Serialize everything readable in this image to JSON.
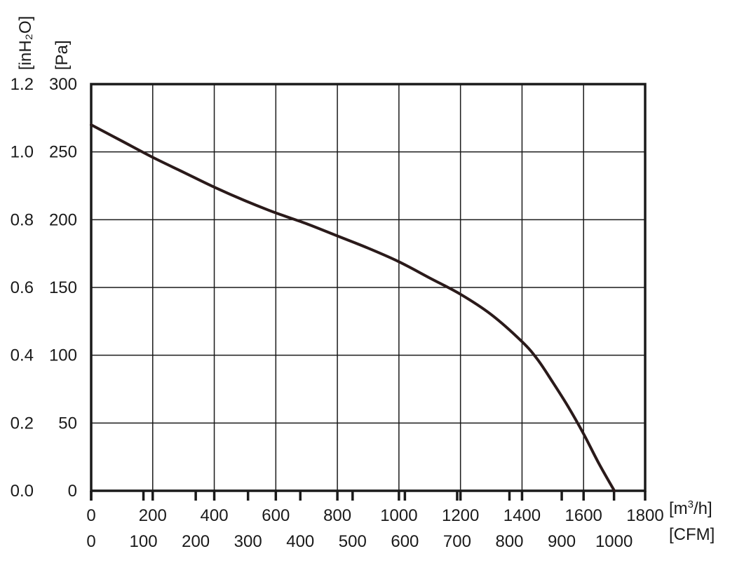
{
  "chart_data": {
    "type": "line",
    "title": "",
    "x_axes": [
      {
        "unit_label": "[m³/h]",
        "unit_base": "[m",
        "unit_sup": "3",
        "unit_tail": "/h]",
        "ticks": [
          0,
          200,
          400,
          600,
          800,
          1000,
          1200,
          1400,
          1600,
          1800
        ],
        "range": [
          0,
          1800
        ]
      },
      {
        "unit_label": "[CFM]",
        "ticks": [
          0,
          100,
          200,
          300,
          400,
          500,
          600,
          700,
          800,
          900,
          1000
        ],
        "range": [
          0,
          1059.5
        ]
      }
    ],
    "y_axes": [
      {
        "unit_label": "[inH₂O]",
        "ticks": [
          "0.0",
          "0.2",
          "0.4",
          "0.6",
          "0.8",
          "1.0",
          "1.2"
        ],
        "range": [
          0,
          1.2
        ]
      },
      {
        "unit_label": "[Pa]",
        "ticks": [
          0,
          50,
          100,
          150,
          200,
          250,
          300
        ],
        "range": [
          0,
          300
        ]
      }
    ],
    "grid": true,
    "series": [
      {
        "x_units": "m³/h",
        "y_units": "Pa",
        "points": [
          [
            0,
            270
          ],
          [
            100,
            258
          ],
          [
            200,
            246
          ],
          [
            300,
            235
          ],
          [
            400,
            224
          ],
          [
            500,
            214
          ],
          [
            600,
            205
          ],
          [
            700,
            197
          ],
          [
            800,
            188
          ],
          [
            900,
            179
          ],
          [
            1000,
            169
          ],
          [
            1100,
            157
          ],
          [
            1200,
            145
          ],
          [
            1300,
            130
          ],
          [
            1400,
            110
          ],
          [
            1450,
            97
          ],
          [
            1500,
            80
          ],
          [
            1550,
            62
          ],
          [
            1600,
            42
          ],
          [
            1650,
            20
          ],
          [
            1700,
            0
          ]
        ]
      }
    ]
  }
}
